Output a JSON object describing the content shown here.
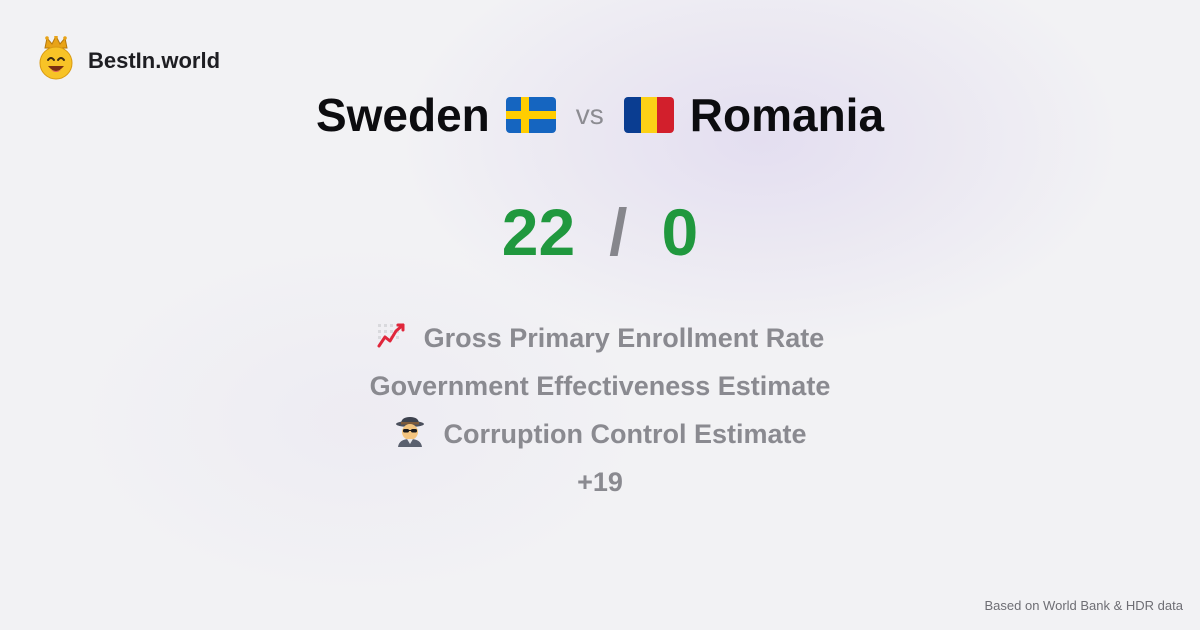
{
  "brand": {
    "name": "BestIn.world",
    "logo_icon": "crown-smiley-icon"
  },
  "comparison": {
    "left_country": "Sweden",
    "left_flag_icon": "sweden-flag-icon",
    "vs_label": "vs",
    "right_country": "Romania",
    "right_flag_icon": "romania-flag-icon"
  },
  "score": {
    "left": "22",
    "separator": "/",
    "right": "0"
  },
  "metrics": [
    {
      "icon": "chart-increasing-icon",
      "label": "Gross Primary Enrollment Rate"
    },
    {
      "icon": "",
      "label": "Government Effectiveness Estimate"
    },
    {
      "icon": "detective-icon",
      "label": "Corruption Control Estimate"
    }
  ],
  "more_count": "+19",
  "footer": {
    "source": "Based on World Bank & HDR data"
  },
  "colors": {
    "score_green": "#20983e",
    "muted_text": "#8a8a90",
    "sweden_blue": "#1565c0",
    "sweden_yellow": "#ffcd00",
    "romania_blue": "#0a3d91",
    "romania_yellow": "#fcd116",
    "romania_red": "#d21f2c"
  }
}
